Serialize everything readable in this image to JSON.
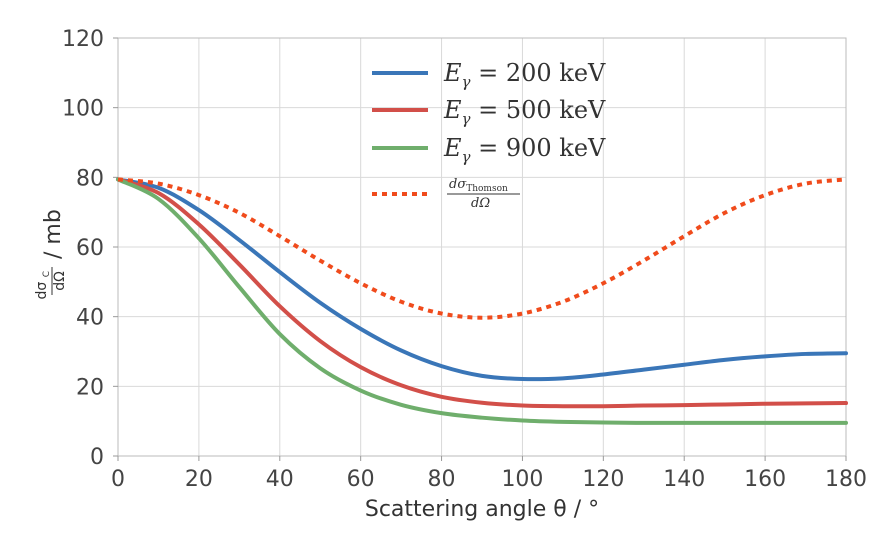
{
  "chart_data": {
    "type": "line",
    "xlabel": "Scattering angle θ / °",
    "ylabel": "dσ_C/dΩ / mb",
    "xlim": [
      0,
      180
    ],
    "ylim": [
      0,
      120
    ],
    "xticks": [
      0,
      20,
      40,
      60,
      80,
      100,
      120,
      140,
      160,
      180
    ],
    "yticks": [
      0,
      20,
      40,
      60,
      80,
      100,
      120
    ],
    "grid": true,
    "legend_position": "top-center",
    "series": [
      {
        "name": "E_γ = 200 keV",
        "color": "#3a76b8",
        "style": "solid",
        "x": [
          0,
          10,
          20,
          30,
          40,
          50,
          60,
          70,
          80,
          90,
          100,
          110,
          120,
          130,
          140,
          150,
          160,
          170,
          180
        ],
        "y": [
          79.4,
          77.0,
          70.6,
          62.0,
          52.8,
          44.0,
          36.5,
          30.3,
          25.8,
          23.0,
          22.1,
          22.3,
          23.4,
          24.8,
          26.2,
          27.6,
          28.6,
          29.3,
          29.5
        ]
      },
      {
        "name": "E_γ = 500 keV",
        "color": "#d24f49",
        "style": "solid",
        "x": [
          0,
          10,
          20,
          30,
          40,
          50,
          60,
          70,
          80,
          90,
          100,
          110,
          120,
          130,
          140,
          150,
          160,
          170,
          180
        ],
        "y": [
          79.4,
          75.5,
          66.5,
          55.0,
          43.0,
          33.0,
          25.5,
          20.3,
          17.0,
          15.3,
          14.5,
          14.3,
          14.3,
          14.5,
          14.6,
          14.8,
          15.0,
          15.1,
          15.2
        ]
      },
      {
        "name": "E_γ = 900 keV",
        "color": "#6fae6c",
        "style": "solid",
        "x": [
          0,
          10,
          20,
          30,
          40,
          50,
          60,
          70,
          80,
          90,
          100,
          110,
          120,
          130,
          140,
          150,
          160,
          170,
          180
        ],
        "y": [
          79.4,
          73.8,
          62.5,
          48.5,
          35.0,
          25.2,
          18.8,
          14.7,
          12.3,
          11.0,
          10.2,
          9.8,
          9.6,
          9.5,
          9.5,
          9.5,
          9.5,
          9.5,
          9.5
        ]
      },
      {
        "name": "dσ_Thomson/dΩ",
        "color": "#f04b1c",
        "style": "dotted",
        "x": [
          0,
          10,
          20,
          30,
          40,
          50,
          60,
          70,
          80,
          90,
          100,
          110,
          120,
          130,
          140,
          150,
          160,
          170,
          180
        ],
        "y": [
          79.4,
          78.2,
          74.9,
          69.8,
          63.1,
          56.1,
          49.6,
          44.3,
          40.9,
          39.7,
          40.9,
          44.3,
          49.6,
          56.1,
          63.1,
          69.8,
          74.9,
          78.2,
          79.4
        ]
      }
    ]
  },
  "legend": {
    "items": [
      {
        "prefix": "E",
        "sub": "γ",
        "rest": " = 200 keV",
        "color": "#3a76b8",
        "style": "solid"
      },
      {
        "prefix": "E",
        "sub": "γ",
        "rest": " = 500 keV",
        "color": "#d24f49",
        "style": "solid"
      },
      {
        "prefix": "E",
        "sub": "γ",
        "rest": " = 900 keV",
        "color": "#6fae6c",
        "style": "solid"
      },
      {
        "frac_top": "dσ",
        "frac_top_sub": "Thomson",
        "frac_bottom": "dΩ",
        "color": "#f04b1c",
        "style": "dotted"
      }
    ]
  },
  "ylabel_parts": {
    "frac_top": "dσ",
    "frac_top_sub": "C",
    "frac_bottom": "dΩ",
    "rest": " / mb"
  }
}
